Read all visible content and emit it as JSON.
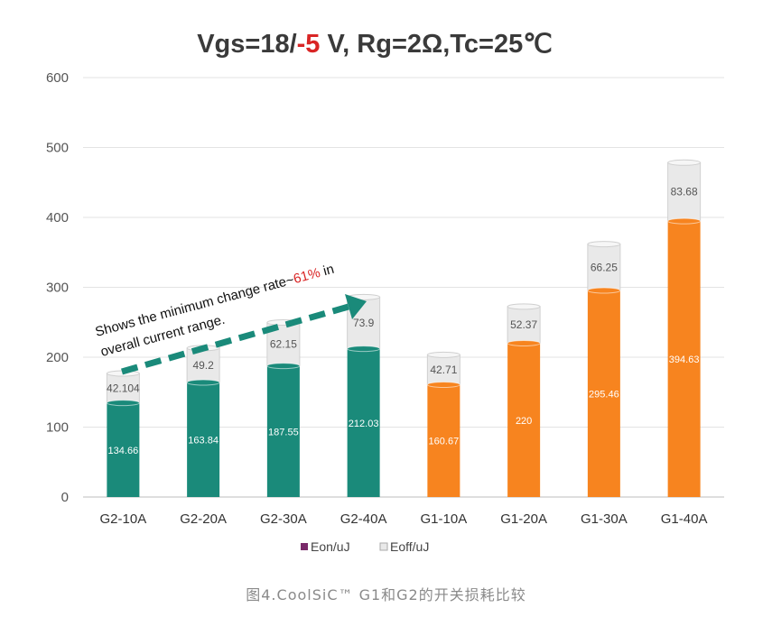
{
  "chart_data": {
    "type": "bar",
    "stacked": true,
    "title": {
      "prefix": "Vgs=18/",
      "highlight": "-5",
      "suffix": " V, Rg=2Ω,Tc=25℃"
    },
    "categories": [
      "G2-10A",
      "G2-20A",
      "G2-30A",
      "G2-40A",
      "G1-10A",
      "G1-20A",
      "G1-30A",
      "G1-40A"
    ],
    "series": [
      {
        "name": "Eon/uJ",
        "values": [
          134.66,
          163.84,
          187.55,
          212.03,
          160.67,
          220,
          295.46,
          394.63
        ]
      },
      {
        "name": "Eoff/uJ",
        "values": [
          42.104,
          49.2,
          62.15,
          73.9,
          42.71,
          52.37,
          66.25,
          83.68
        ]
      }
    ],
    "eoff_labels": [
      "42.104",
      "49.2",
      "62.15",
      "73.9",
      "42.71",
      "52.37",
      "66.25",
      "83.68"
    ],
    "ylim": [
      0,
      600
    ],
    "yticks": [
      0,
      100,
      200,
      300,
      400,
      500,
      600
    ],
    "grid": true,
    "legend": "bottom",
    "colors": {
      "g2": "#1a8a7a",
      "g1": "#f7841f",
      "eoff": "#e9e9e9",
      "highlight": "#d92525",
      "arrow": "#1a8a7a",
      "legend_eon": "#7a2a6a"
    },
    "annotation": {
      "line1_prefix": "Shows the minimum change rate~",
      "line1_highlight": "61%",
      "line1_suffix": " in",
      "line2": "overall current range."
    }
  },
  "caption": "图4.CoolSiC™ G1和G2的开关损耗比较"
}
